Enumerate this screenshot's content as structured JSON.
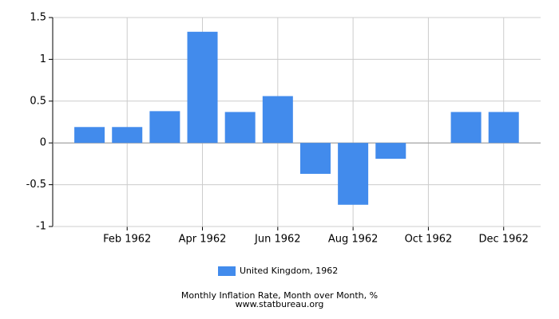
{
  "chart_data": {
    "type": "bar",
    "title": "Monthly Inflation Rate, Month over Month, %",
    "source": "www.statbureau.org",
    "categories": [
      null,
      "Feb 1962",
      null,
      "Apr 1962",
      null,
      "Jun 1962",
      null,
      "Aug 1962",
      null,
      "Oct 1962",
      null,
      "Dec 1962"
    ],
    "series": [
      {
        "name": "United Kingdom, 1962",
        "color": "#428bec",
        "values": [
          0.19,
          0.19,
          0.38,
          1.33,
          0.37,
          0.56,
          -0.37,
          -0.74,
          -0.19,
          0,
          0.37,
          0.37
        ]
      }
    ],
    "ylim": [
      -1,
      1.5
    ],
    "yticks": [
      -1,
      -0.5,
      0,
      0.5,
      1,
      1.5
    ],
    "grid": true,
    "legend": "bottom"
  }
}
